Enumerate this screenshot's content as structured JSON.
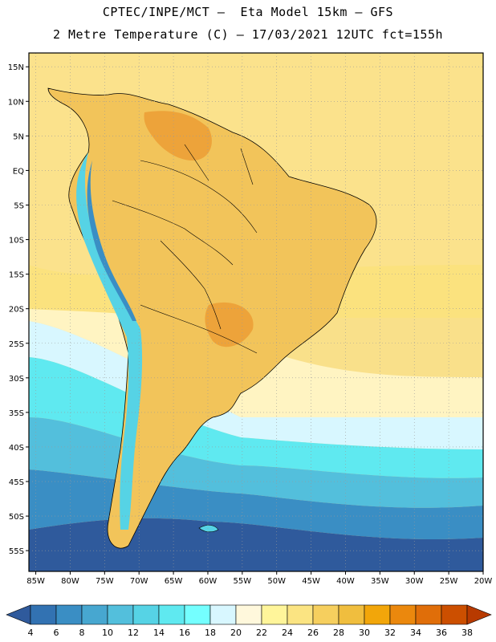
{
  "header": {
    "line1": "CPTEC/INPE/MCT –  Eta Model 15km – GFS",
    "line2": "2 Metre Temperature (C) – 17/03/2021 12UTC fct=155h"
  },
  "axes": {
    "lon_labels": [
      "85W",
      "80W",
      "75W",
      "70W",
      "65W",
      "60W",
      "55W",
      "50W",
      "45W",
      "40W",
      "35W",
      "30W",
      "25W",
      "20W"
    ],
    "lat_labels": [
      "15N",
      "10N",
      "5N",
      "EQ",
      "5S",
      "10S",
      "15S",
      "20S",
      "25S",
      "30S",
      "35S",
      "40S",
      "45S",
      "50S",
      "55S"
    ],
    "lon_range": [
      -86,
      -20
    ],
    "lat_range": [
      17,
      -58
    ],
    "grid": "dotted"
  },
  "colorbar": {
    "levels": [
      "4",
      "6",
      "8",
      "10",
      "12",
      "14",
      "16",
      "18",
      "20",
      "22",
      "24",
      "26",
      "28",
      "30",
      "32",
      "34",
      "36",
      "38"
    ],
    "colors": [
      "#2f5a9c",
      "#3272b2",
      "#3a8ec4",
      "#47a7d0",
      "#53bfdc",
      "#56d3e5",
      "#5fe9f0",
      "#74ffff",
      "#d8f7ff",
      "#fff8dc",
      "#fff59a",
      "#fbe482",
      "#f6cf5e",
      "#f0be3e",
      "#f2a60a",
      "#eb880d",
      "#e06e09",
      "#cc4f00",
      "#b83a00"
    ]
  }
}
